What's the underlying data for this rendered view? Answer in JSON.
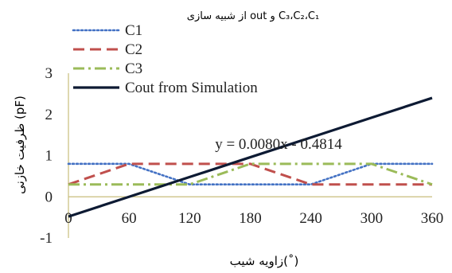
{
  "chart_data": {
    "type": "line",
    "title": "C₃،C₂،C₁ و out از شبیه سازی",
    "xlabel": "زاویه شیب(˚)",
    "ylabel": "ظرفیت خازنی (pF)",
    "xlim": [
      0,
      360
    ],
    "ylim": [
      -1,
      3
    ],
    "x_ticks": [
      "0",
      "60",
      "120",
      "180",
      "240",
      "300",
      "360"
    ],
    "y_ticks": [
      "-1",
      "0",
      "1",
      "2",
      "3"
    ],
    "grid": false,
    "legend_position": "top-left",
    "series": [
      {
        "name": "C1",
        "color": "#4472C4",
        "dash": "dotted",
        "points": [
          [
            0,
            0.8
          ],
          [
            60,
            0.8
          ],
          [
            120,
            0.3
          ],
          [
            180,
            0.3
          ],
          [
            240,
            0.3
          ],
          [
            300,
            0.8
          ],
          [
            360,
            0.8
          ]
        ]
      },
      {
        "name": "C2",
        "color": "#C0504D",
        "dash": "dashed",
        "points": [
          [
            0,
            0.3
          ],
          [
            60,
            0.8
          ],
          [
            120,
            0.8
          ],
          [
            180,
            0.8
          ],
          [
            240,
            0.3
          ],
          [
            300,
            0.3
          ],
          [
            360,
            0.3
          ]
        ]
      },
      {
        "name": "C3",
        "color": "#9BBB59",
        "dash": "dashdot",
        "points": [
          [
            0,
            0.3
          ],
          [
            60,
            0.3
          ],
          [
            120,
            0.3
          ],
          [
            180,
            0.8
          ],
          [
            240,
            0.8
          ],
          [
            300,
            0.8
          ],
          [
            360,
            0.3
          ]
        ]
      },
      {
        "name": "Cout from Simulation",
        "color": "#0D1A33",
        "dash": "solid",
        "points": [
          [
            0,
            -0.48
          ],
          [
            60,
            0.0
          ],
          [
            120,
            0.48
          ],
          [
            180,
            0.96
          ],
          [
            240,
            1.44
          ],
          [
            300,
            1.92
          ],
          [
            360,
            2.4
          ]
        ]
      }
    ],
    "annotations": [
      {
        "text": "y = 0.0080x - 0.4814"
      }
    ]
  }
}
